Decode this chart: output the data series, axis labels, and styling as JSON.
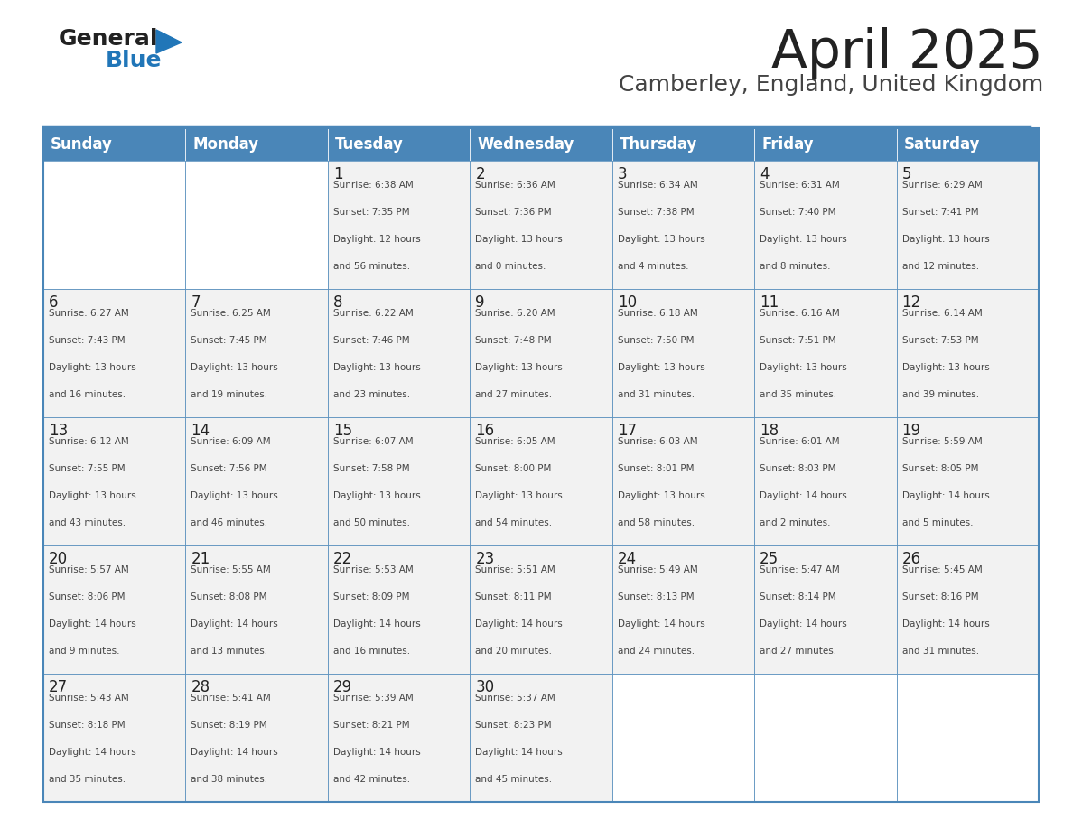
{
  "title": "April 2025",
  "subtitle": "Camberley, England, United Kingdom",
  "days_of_week": [
    "Sunday",
    "Monday",
    "Tuesday",
    "Wednesday",
    "Thursday",
    "Friday",
    "Saturday"
  ],
  "header_bg": "#4a86b8",
  "header_text": "#ffffff",
  "cell_bg_light": "#f2f2f2",
  "cell_bg_white": "#ffffff",
  "border_color": "#4a86b8",
  "title_color": "#222222",
  "subtitle_color": "#444444",
  "day_number_color": "#222222",
  "cell_text_color": "#444444",
  "logo_general_color": "#222222",
  "logo_blue_color": "#2176b8",
  "weeks": [
    [
      {
        "day": null,
        "info": null
      },
      {
        "day": null,
        "info": null
      },
      {
        "day": 1,
        "info": "Sunrise: 6:38 AM\nSunset: 7:35 PM\nDaylight: 12 hours\nand 56 minutes."
      },
      {
        "day": 2,
        "info": "Sunrise: 6:36 AM\nSunset: 7:36 PM\nDaylight: 13 hours\nand 0 minutes."
      },
      {
        "day": 3,
        "info": "Sunrise: 6:34 AM\nSunset: 7:38 PM\nDaylight: 13 hours\nand 4 minutes."
      },
      {
        "day": 4,
        "info": "Sunrise: 6:31 AM\nSunset: 7:40 PM\nDaylight: 13 hours\nand 8 minutes."
      },
      {
        "day": 5,
        "info": "Sunrise: 6:29 AM\nSunset: 7:41 PM\nDaylight: 13 hours\nand 12 minutes."
      }
    ],
    [
      {
        "day": 6,
        "info": "Sunrise: 6:27 AM\nSunset: 7:43 PM\nDaylight: 13 hours\nand 16 minutes."
      },
      {
        "day": 7,
        "info": "Sunrise: 6:25 AM\nSunset: 7:45 PM\nDaylight: 13 hours\nand 19 minutes."
      },
      {
        "day": 8,
        "info": "Sunrise: 6:22 AM\nSunset: 7:46 PM\nDaylight: 13 hours\nand 23 minutes."
      },
      {
        "day": 9,
        "info": "Sunrise: 6:20 AM\nSunset: 7:48 PM\nDaylight: 13 hours\nand 27 minutes."
      },
      {
        "day": 10,
        "info": "Sunrise: 6:18 AM\nSunset: 7:50 PM\nDaylight: 13 hours\nand 31 minutes."
      },
      {
        "day": 11,
        "info": "Sunrise: 6:16 AM\nSunset: 7:51 PM\nDaylight: 13 hours\nand 35 minutes."
      },
      {
        "day": 12,
        "info": "Sunrise: 6:14 AM\nSunset: 7:53 PM\nDaylight: 13 hours\nand 39 minutes."
      }
    ],
    [
      {
        "day": 13,
        "info": "Sunrise: 6:12 AM\nSunset: 7:55 PM\nDaylight: 13 hours\nand 43 minutes."
      },
      {
        "day": 14,
        "info": "Sunrise: 6:09 AM\nSunset: 7:56 PM\nDaylight: 13 hours\nand 46 minutes."
      },
      {
        "day": 15,
        "info": "Sunrise: 6:07 AM\nSunset: 7:58 PM\nDaylight: 13 hours\nand 50 minutes."
      },
      {
        "day": 16,
        "info": "Sunrise: 6:05 AM\nSunset: 8:00 PM\nDaylight: 13 hours\nand 54 minutes."
      },
      {
        "day": 17,
        "info": "Sunrise: 6:03 AM\nSunset: 8:01 PM\nDaylight: 13 hours\nand 58 minutes."
      },
      {
        "day": 18,
        "info": "Sunrise: 6:01 AM\nSunset: 8:03 PM\nDaylight: 14 hours\nand 2 minutes."
      },
      {
        "day": 19,
        "info": "Sunrise: 5:59 AM\nSunset: 8:05 PM\nDaylight: 14 hours\nand 5 minutes."
      }
    ],
    [
      {
        "day": 20,
        "info": "Sunrise: 5:57 AM\nSunset: 8:06 PM\nDaylight: 14 hours\nand 9 minutes."
      },
      {
        "day": 21,
        "info": "Sunrise: 5:55 AM\nSunset: 8:08 PM\nDaylight: 14 hours\nand 13 minutes."
      },
      {
        "day": 22,
        "info": "Sunrise: 5:53 AM\nSunset: 8:09 PM\nDaylight: 14 hours\nand 16 minutes."
      },
      {
        "day": 23,
        "info": "Sunrise: 5:51 AM\nSunset: 8:11 PM\nDaylight: 14 hours\nand 20 minutes."
      },
      {
        "day": 24,
        "info": "Sunrise: 5:49 AM\nSunset: 8:13 PM\nDaylight: 14 hours\nand 24 minutes."
      },
      {
        "day": 25,
        "info": "Sunrise: 5:47 AM\nSunset: 8:14 PM\nDaylight: 14 hours\nand 27 minutes."
      },
      {
        "day": 26,
        "info": "Sunrise: 5:45 AM\nSunset: 8:16 PM\nDaylight: 14 hours\nand 31 minutes."
      }
    ],
    [
      {
        "day": 27,
        "info": "Sunrise: 5:43 AM\nSunset: 8:18 PM\nDaylight: 14 hours\nand 35 minutes."
      },
      {
        "day": 28,
        "info": "Sunrise: 5:41 AM\nSunset: 8:19 PM\nDaylight: 14 hours\nand 38 minutes."
      },
      {
        "day": 29,
        "info": "Sunrise: 5:39 AM\nSunset: 8:21 PM\nDaylight: 14 hours\nand 42 minutes."
      },
      {
        "day": 30,
        "info": "Sunrise: 5:37 AM\nSunset: 8:23 PM\nDaylight: 14 hours\nand 45 minutes."
      },
      {
        "day": null,
        "info": null
      },
      {
        "day": null,
        "info": null
      },
      {
        "day": null,
        "info": null
      }
    ]
  ]
}
